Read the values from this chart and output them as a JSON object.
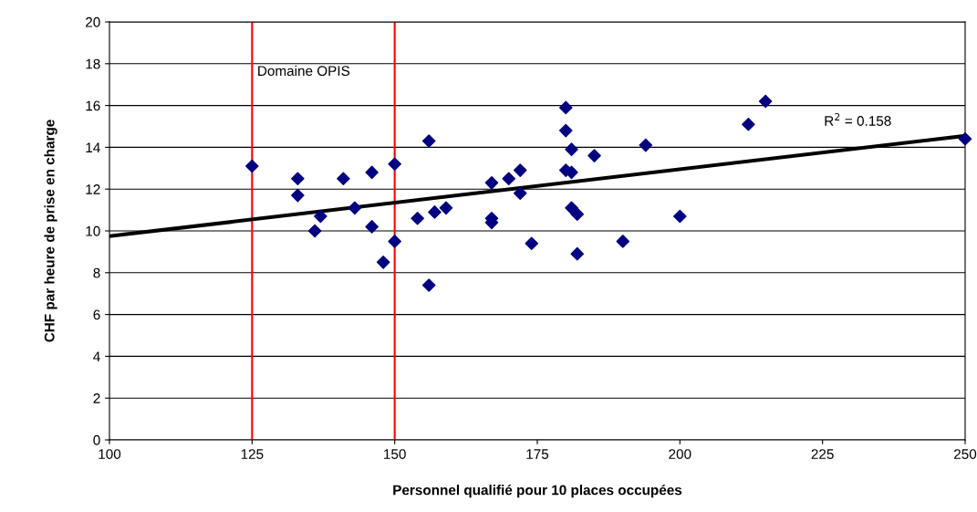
{
  "chart_data": {
    "type": "scatter",
    "xlabel": "Personnel qualifié pour 10 places occupées",
    "ylabel": "CHF par heure de prise en charge",
    "xlim": [
      100,
      250
    ],
    "xticks": [
      100,
      125,
      150,
      175,
      200,
      225,
      250
    ],
    "ylim": [
      0,
      20
    ],
    "yticks": [
      0,
      2,
      4,
      6,
      8,
      10,
      12,
      14,
      16,
      18,
      20
    ],
    "grid": "y",
    "marker": "diamond",
    "series": [
      {
        "color": "#000080",
        "x": [
          125,
          133,
          133,
          136,
          137,
          141,
          143,
          146,
          146,
          148,
          150,
          150,
          154,
          156,
          156,
          157,
          159,
          167,
          167,
          167,
          170,
          172,
          172,
          174,
          180,
          180,
          180,
          181,
          181,
          181,
          182,
          182,
          185,
          190,
          194,
          200,
          212,
          215,
          250
        ],
        "values": [
          13.1,
          12.5,
          11.7,
          10.0,
          10.7,
          12.5,
          11.1,
          12.8,
          10.2,
          8.5,
          13.2,
          9.5,
          10.6,
          14.3,
          7.4,
          10.9,
          11.1,
          12.3,
          10.6,
          10.4,
          12.5,
          11.8,
          12.9,
          9.4,
          15.9,
          14.8,
          12.9,
          13.9,
          12.8,
          11.1,
          10.8,
          8.9,
          13.6,
          9.5,
          14.1,
          10.7,
          15.1,
          16.2,
          14.4
        ]
      },
      {
        "type": "line",
        "marker": "none",
        "color": "#000000",
        "x": [
          100,
          250
        ],
        "values": [
          9.75,
          14.55
        ]
      }
    ],
    "ref_lines": [
      {
        "axis": "x",
        "value": 125,
        "color": "#ff0000",
        "label": "Domaine OPIS"
      },
      {
        "axis": "x",
        "value": 150,
        "color": "#ff0000"
      }
    ],
    "annotations": [
      "R$^{2}$ = 0.158"
    ]
  }
}
